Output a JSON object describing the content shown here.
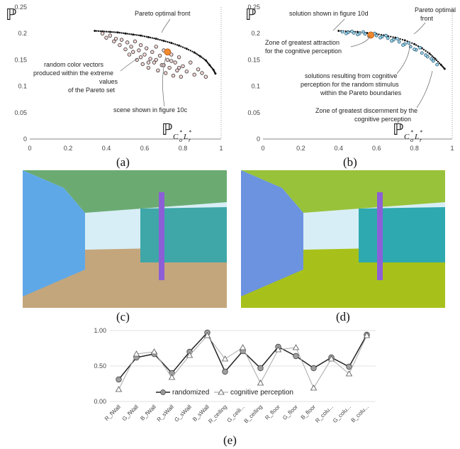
{
  "panel_a": {
    "caption": "(a)",
    "y_symbol": "ℙ",
    "x_symbol": "ℙ",
    "x_sub_c": "C",
    "x_sub_c_sub": "o",
    "x_sub_l": "L",
    "x_sub_l_sub": "r",
    "x_sup": "*",
    "annotations": {
      "pareto": "Pareto optimal front",
      "random_1": "random color vectors",
      "random_2": "produced within the extreme",
      "random_3": "values",
      "random_4": "of the Pareto set",
      "scene": "scene shown in figure 10c"
    }
  },
  "panel_b": {
    "caption": "(b)",
    "y_symbol": "ℙ",
    "x_symbol": "ℙ",
    "x_sub_c": "C",
    "x_sub_c_sub": "o",
    "x_sub_l": "L",
    "x_sub_l_sub": "r",
    "x_sup": "*",
    "annotations": {
      "solution": "solution shown in figure 10d",
      "pareto_1": "Pareto optimal",
      "pareto_2": "front",
      "attraction_1": "Zone of greatest attraction",
      "attraction_2": "for the cognitive perception",
      "solutions_1": "solutions resulting from cognitive",
      "solutions_2": "perception for  the random stimulus",
      "solutions_3": "within the Pareto boundaries",
      "discern_1": "Zone of greatest discernment by the",
      "discern_2": "cognitive perception"
    }
  },
  "panel_c": {
    "caption": "(c)"
  },
  "panel_d": {
    "caption": "(d)"
  },
  "panel_e": {
    "caption": "(e)"
  },
  "colors": {
    "wall_left_c": "#5fa8e8",
    "ceiling_c": "#6bab72",
    "floor_c": "#c4a67c",
    "panel_c": "#3fa7a8",
    "pole": "#8d5fd6",
    "wall_left_d": "#6c93e0",
    "ceiling_d": "#98c23a",
    "floor_d": "#a8c11a",
    "panel_d": "#2ea9b0",
    "sky": "#d8eef6",
    "accent": "#f08a2c"
  },
  "chart_data": [
    {
      "type": "scatter",
      "title": "",
      "xlim": [
        0,
        1
      ],
      "ylim": [
        0,
        0.25
      ],
      "x_ticks": [
        "0",
        "0.2",
        "0.4",
        "0.6",
        "0.8",
        "1"
      ],
      "y_ticks": [
        "0",
        "0.05",
        "0.1",
        "0.15",
        "0.2",
        "0.25"
      ],
      "series": [
        {
          "name": "",
          "points": [
            [
              0.34,
              0.205
            ],
            [
              0.38,
              0.204
            ],
            [
              0.42,
              0.203
            ],
            [
              0.46,
              0.202
            ],
            [
              0.5,
              0.2
            ],
            [
              0.54,
              0.198
            ],
            [
              0.58,
              0.196
            ],
            [
              0.62,
              0.193
            ],
            [
              0.66,
              0.19
            ],
            [
              0.7,
              0.186
            ],
            [
              0.74,
              0.182
            ],
            [
              0.78,
              0.177
            ],
            [
              0.82,
              0.171
            ],
            [
              0.86,
              0.164
            ],
            [
              0.89,
              0.157
            ],
            [
              0.92,
              0.149
            ],
            [
              0.94,
              0.14
            ],
            [
              0.96,
              0.131
            ],
            [
              0.97,
              0.124
            ]
          ]
        },
        {
          "name": "",
          "points": [
            [
              0.38,
              0.2
            ],
            [
              0.4,
              0.192
            ],
            [
              0.42,
              0.196
            ],
            [
              0.44,
              0.185
            ],
            [
              0.45,
              0.19
            ],
            [
              0.47,
              0.178
            ],
            [
              0.48,
              0.188
            ],
            [
              0.5,
              0.17
            ],
            [
              0.51,
              0.183
            ],
            [
              0.52,
              0.16
            ],
            [
              0.53,
              0.175
            ],
            [
              0.55,
              0.185
            ],
            [
              0.56,
              0.15
            ],
            [
              0.57,
              0.168
            ],
            [
              0.58,
              0.178
            ],
            [
              0.59,
              0.142
            ],
            [
              0.6,
              0.16
            ],
            [
              0.61,
              0.172
            ],
            [
              0.62,
              0.135
            ],
            [
              0.63,
              0.152
            ],
            [
              0.64,
              0.165
            ],
            [
              0.65,
              0.145
            ],
            [
              0.66,
              0.175
            ],
            [
              0.67,
              0.13
            ],
            [
              0.68,
              0.158
            ],
            [
              0.69,
              0.14
            ],
            [
              0.7,
              0.168
            ],
            [
              0.71,
              0.125
            ],
            [
              0.72,
              0.15
            ],
            [
              0.73,
              0.135
            ],
            [
              0.74,
              0.16
            ],
            [
              0.75,
              0.12
            ],
            [
              0.76,
              0.145
            ],
            [
              0.77,
              0.13
            ],
            [
              0.78,
              0.155
            ],
            [
              0.79,
              0.118
            ],
            [
              0.8,
              0.138
            ],
            [
              0.82,
              0.128
            ],
            [
              0.84,
              0.145
            ],
            [
              0.86,
              0.122
            ],
            [
              0.88,
              0.132
            ],
            [
              0.9,
              0.125
            ],
            [
              0.92,
              0.118
            ],
            [
              0.54,
              0.165
            ],
            [
              0.58,
              0.155
            ],
            [
              0.62,
              0.145
            ],
            [
              0.66,
              0.15
            ],
            [
              0.7,
              0.14
            ],
            [
              0.74,
              0.148
            ],
            [
              0.78,
              0.135
            ]
          ]
        }
      ],
      "highlight": [
        0.72,
        0.165
      ]
    },
    {
      "type": "scatter",
      "title": "",
      "xlim": [
        0,
        1
      ],
      "ylim": [
        0,
        0.25
      ],
      "x_ticks": [
        "0",
        "0.2",
        "0.4",
        "0.6",
        "0.8",
        "1"
      ],
      "y_ticks": [
        "0",
        "0.05",
        "0.1",
        "0.15",
        "0.2",
        "0.25"
      ],
      "series": [
        {
          "name": "",
          "points": [
            [
              0.4,
              0.205
            ],
            [
              0.45,
              0.204
            ],
            [
              0.5,
              0.203
            ],
            [
              0.55,
              0.201
            ],
            [
              0.6,
              0.199
            ],
            [
              0.65,
              0.196
            ],
            [
              0.7,
              0.192
            ],
            [
              0.75,
              0.187
            ],
            [
              0.8,
              0.18
            ],
            [
              0.84,
              0.172
            ],
            [
              0.88,
              0.162
            ],
            [
              0.91,
              0.152
            ],
            [
              0.94,
              0.141
            ],
            [
              0.96,
              0.133
            ]
          ]
        },
        {
          "name": "",
          "points": [
            [
              0.42,
              0.203
            ],
            [
              0.45,
              0.202
            ],
            [
              0.48,
              0.201
            ],
            [
              0.51,
              0.2
            ],
            [
              0.54,
              0.199
            ],
            [
              0.57,
              0.197
            ],
            [
              0.6,
              0.196
            ],
            [
              0.63,
              0.194
            ],
            [
              0.66,
              0.191
            ],
            [
              0.69,
              0.188
            ],
            [
              0.72,
              0.184
            ],
            [
              0.75,
              0.18
            ],
            [
              0.78,
              0.175
            ],
            [
              0.81,
              0.169
            ],
            [
              0.84,
              0.163
            ],
            [
              0.87,
              0.156
            ],
            [
              0.9,
              0.148
            ],
            [
              0.92,
              0.141
            ],
            [
              0.44,
              0.2
            ],
            [
              0.47,
              0.204
            ],
            [
              0.5,
              0.198
            ],
            [
              0.53,
              0.203
            ],
            [
              0.56,
              0.195
            ],
            [
              0.59,
              0.2
            ],
            [
              0.62,
              0.192
            ],
            [
              0.65,
              0.196
            ],
            [
              0.68,
              0.186
            ],
            [
              0.71,
              0.19
            ],
            [
              0.74,
              0.178
            ],
            [
              0.77,
              0.182
            ],
            [
              0.8,
              0.17
            ],
            [
              0.83,
              0.173
            ],
            [
              0.86,
              0.159
            ],
            [
              0.89,
              0.152
            ]
          ]
        }
      ],
      "highlight": [
        0.57,
        0.197
      ]
    },
    {
      "type": "line",
      "title": "",
      "ylim": [
        0,
        1
      ],
      "y_ticks": [
        "0.00",
        "0.50",
        "1.00"
      ],
      "categories": [
        "R_fWall",
        "G_fWall",
        "B_fWall",
        "R_sWall",
        "G_sWall",
        "B_sWall",
        "R_ceiling",
        "G_ceili...",
        "B_ceiling",
        "R_floor",
        "G_floor",
        "B_floor",
        "R_colu...",
        "G_colu...",
        "B_colu..."
      ],
      "series": [
        {
          "name": "randomized",
          "values": [
            0.31,
            0.62,
            0.67,
            0.4,
            0.7,
            0.97,
            0.42,
            0.71,
            0.47,
            0.77,
            0.64,
            0.47,
            0.62,
            0.49,
            0.94
          ]
        },
        {
          "name": "cognitive perception",
          "values": [
            0.17,
            0.67,
            0.7,
            0.34,
            0.65,
            0.93,
            0.6,
            0.76,
            0.26,
            0.73,
            0.76,
            0.19,
            0.6,
            0.39,
            0.93
          ]
        }
      ],
      "legend": "bottom"
    }
  ]
}
